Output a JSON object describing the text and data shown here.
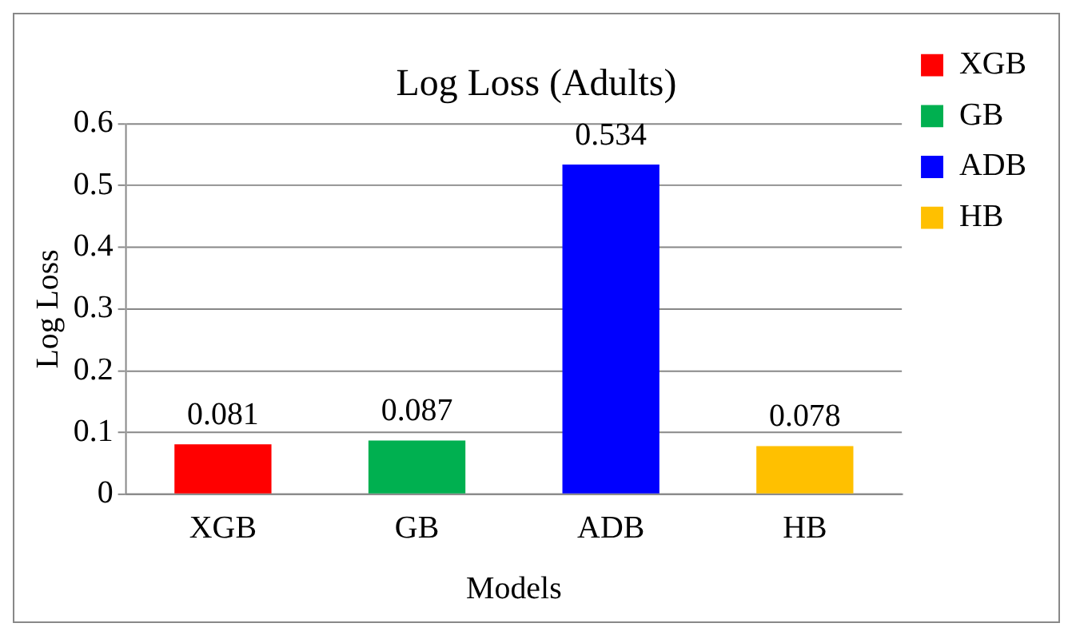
{
  "chart_data": {
    "type": "bar",
    "title": "Log Loss (Adults)",
    "xlabel": "Models",
    "ylabel": "Log Loss",
    "categories": [
      "XGB",
      "GB",
      "ADB",
      "HB"
    ],
    "series": [
      {
        "name": "XGB",
        "color": "#ff0000",
        "values": [
          0.081,
          null,
          null,
          null
        ]
      },
      {
        "name": "GB",
        "color": "#00b050",
        "values": [
          null,
          0.087,
          null,
          null
        ]
      },
      {
        "name": "ADB",
        "color": "#0000ff",
        "values": [
          null,
          null,
          0.534,
          null
        ]
      },
      {
        "name": "HB",
        "color": "#ffc000",
        "values": [
          null,
          null,
          null,
          0.078
        ]
      }
    ],
    "ylim": [
      0,
      0.6
    ],
    "yticks": [
      0,
      0.1,
      0.2,
      0.3,
      0.4,
      0.5,
      0.6
    ],
    "grid": "y",
    "legend": "top right",
    "data_labels": true
  }
}
